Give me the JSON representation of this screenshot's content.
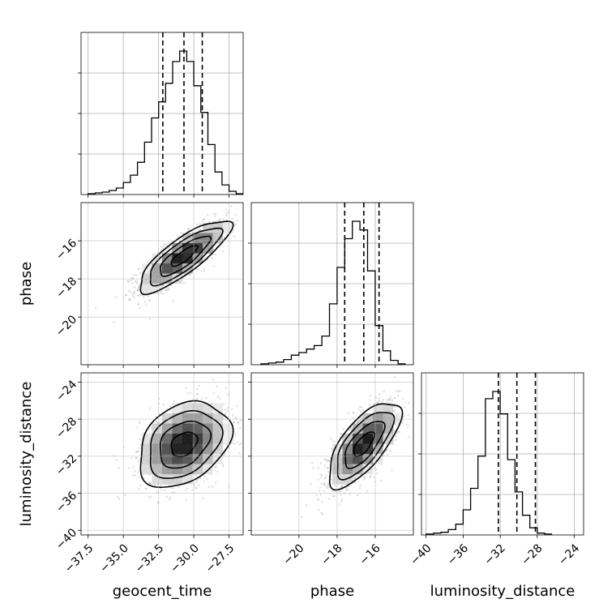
{
  "chart_data": {
    "type": "corner",
    "parameters": [
      "geocent_time",
      "phase",
      "luminosity_distance"
    ],
    "grid": true,
    "quantile_lines": "dashed",
    "ranges": {
      "geocent_time": [
        -38.0,
        -26.5
      ],
      "phase": [
        -22.5,
        -14.0
      ],
      "luminosity_distance": [
        -40.5,
        -23.0
      ]
    },
    "ticks": {
      "geocent_time": [
        "−37.5",
        "−35.0",
        "−32.5",
        "−30.0",
        "−27.5"
      ],
      "phase": [
        "−20",
        "−18",
        "−16"
      ],
      "luminosity_distance": [
        "−40",
        "−36",
        "−32",
        "−28",
        "−24"
      ]
    },
    "tick_values": {
      "geocent_time": [
        -37.5,
        -35.0,
        -32.5,
        -30.0,
        -27.5
      ],
      "phase": [
        -20,
        -18,
        -16
      ],
      "luminosity_distance": [
        -40,
        -36,
        -32,
        -28,
        -24
      ]
    },
    "histograms": {
      "geocent_time": {
        "bin_start": -37.5,
        "bin_width": 0.5,
        "counts": [
          1,
          2,
          3,
          5,
          8,
          15,
          24,
          40,
          65,
          95,
          115,
          138,
          165,
          178,
          165,
          135,
          102,
          62,
          28,
          12,
          4,
          1
        ],
        "quantiles": [
          -32.2,
          -30.7,
          -29.4
        ]
      },
      "phase": {
        "bin_start": -22.0,
        "bin_width": 0.4,
        "counts": [
          1,
          2,
          3,
          6,
          11,
          14,
          18,
          22,
          33,
          70,
          112,
          145,
          165,
          155,
          108,
          45,
          16,
          5,
          1
        ],
        "quantiles": [
          -17.6,
          -16.6,
          -15.8
        ]
      },
      "luminosity_distance": {
        "bin_start": -40.0,
        "bin_width": 0.8,
        "counts": [
          1,
          2,
          3,
          6,
          12,
          28,
          52,
          88,
          152,
          160,
          135,
          84,
          48,
          22,
          8,
          2,
          1
        ],
        "quantiles": [
          -32.2,
          -30.2,
          -28.2
        ]
      }
    },
    "pairs": [
      {
        "x": "geocent_time",
        "y": "phase",
        "mean": [
          -30.7,
          -16.8
        ],
        "sd": [
          1.55,
          0.9
        ],
        "corr": 0.82
      },
      {
        "x": "geocent_time",
        "y": "luminosity_distance",
        "mean": [
          -30.7,
          -30.7
        ],
        "sd": [
          1.55,
          2.2
        ],
        "corr": 0.32
      },
      {
        "x": "phase",
        "y": "luminosity_distance",
        "mean": [
          -16.6,
          -30.7
        ],
        "sd": [
          0.9,
          2.2
        ],
        "corr": 0.7
      }
    ]
  }
}
